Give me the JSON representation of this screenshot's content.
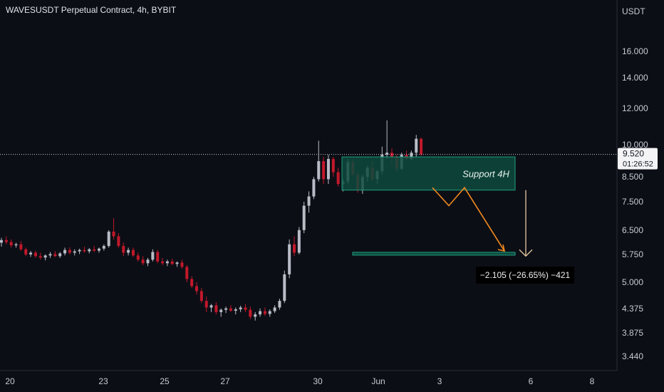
{
  "header": {
    "title": "WAVESUSDT Perpetual Contract, 4h, BYBIT"
  },
  "colors": {
    "background": "#0c0e15",
    "up": "#b8bcc6",
    "down": "#c2182b",
    "support_fill": "#0e4a3d",
    "support_border": "#1e9e82",
    "projection": "#f0891f",
    "arrow": "#e8c9a0",
    "current_price_bg": "#f4f4f6"
  },
  "chart_data": {
    "type": "candlestick",
    "currency": "USDT",
    "y_axis_ticks": [
      "16.000",
      "14.000",
      "12.000",
      "10.000",
      "8.500",
      "7.500",
      "6.500",
      "5.750",
      "5.000",
      "4.375",
      "3.875",
      "3.440"
    ],
    "x_axis_ticks": [
      "20",
      "23",
      "25",
      "27",
      "30",
      "Jun",
      "3",
      "6",
      "8"
    ],
    "current_price": "9.520",
    "countdown": "01:26:52",
    "support_zone": {
      "label": "Support 4H",
      "top": 9.4,
      "bottom": 7.95
    },
    "target_level": 5.77,
    "measure_label": "−2.105 (−26.65%) −421",
    "candles": [
      [
        6.1,
        6.25,
        5.98,
        6.18
      ],
      [
        6.18,
        6.3,
        6.05,
        6.12
      ],
      [
        6.12,
        6.2,
        5.95,
        6.02
      ],
      [
        6.02,
        6.1,
        5.95,
        6.05
      ],
      [
        6.05,
        6.15,
        5.85,
        5.9
      ],
      [
        5.9,
        5.95,
        5.7,
        5.75
      ],
      [
        5.75,
        5.85,
        5.68,
        5.8
      ],
      [
        5.8,
        5.86,
        5.66,
        5.7
      ],
      [
        5.7,
        5.8,
        5.6,
        5.66
      ],
      [
        5.66,
        5.75,
        5.58,
        5.72
      ],
      [
        5.72,
        5.82,
        5.65,
        5.76
      ],
      [
        5.76,
        5.85,
        5.68,
        5.7
      ],
      [
        5.7,
        5.82,
        5.65,
        5.78
      ],
      [
        5.78,
        5.95,
        5.72,
        5.88
      ],
      [
        5.88,
        5.96,
        5.75,
        5.8
      ],
      [
        5.8,
        5.9,
        5.72,
        5.84
      ],
      [
        5.84,
        5.92,
        5.76,
        5.88
      ],
      [
        5.88,
        5.98,
        5.8,
        5.84
      ],
      [
        5.84,
        5.94,
        5.78,
        5.9
      ],
      [
        5.9,
        6.0,
        5.82,
        5.86
      ],
      [
        5.86,
        5.95,
        5.8,
        5.92
      ],
      [
        5.92,
        6.05,
        5.86,
        6.0
      ],
      [
        6.0,
        6.5,
        5.95,
        6.45
      ],
      [
        6.45,
        6.9,
        6.2,
        6.3
      ],
      [
        6.3,
        6.4,
        5.95,
        6.0
      ],
      [
        6.0,
        6.1,
        5.7,
        5.8
      ],
      [
        5.8,
        5.95,
        5.72,
        5.88
      ],
      [
        5.88,
        5.95,
        5.68,
        5.72
      ],
      [
        5.72,
        5.8,
        5.55,
        5.6
      ],
      [
        5.6,
        5.7,
        5.45,
        5.5
      ],
      [
        5.5,
        5.65,
        5.42,
        5.6
      ],
      [
        5.6,
        5.9,
        5.55,
        5.82
      ],
      [
        5.82,
        5.88,
        5.5,
        5.55
      ],
      [
        5.55,
        5.65,
        5.45,
        5.5
      ],
      [
        5.5,
        5.6,
        5.42,
        5.55
      ],
      [
        5.55,
        5.62,
        5.45,
        5.48
      ],
      [
        5.48,
        5.55,
        5.4,
        5.52
      ],
      [
        5.52,
        5.6,
        5.35,
        5.4
      ],
      [
        5.4,
        5.45,
        5.0,
        5.08
      ],
      [
        5.08,
        5.15,
        4.85,
        4.9
      ],
      [
        4.9,
        5.0,
        4.7,
        4.78
      ],
      [
        4.78,
        4.85,
        4.5,
        4.55
      ],
      [
        4.55,
        4.65,
        4.3,
        4.4
      ],
      [
        4.4,
        4.48,
        4.3,
        4.45
      ],
      [
        4.45,
        4.52,
        4.25,
        4.3
      ],
      [
        4.3,
        4.38,
        4.2,
        4.35
      ],
      [
        4.35,
        4.42,
        4.28,
        4.38
      ],
      [
        4.38,
        4.45,
        4.3,
        4.33
      ],
      [
        4.33,
        4.4,
        4.25,
        4.36
      ],
      [
        4.36,
        4.44,
        4.3,
        4.4
      ],
      [
        4.4,
        4.48,
        4.3,
        4.35
      ],
      [
        4.35,
        4.42,
        4.15,
        4.2
      ],
      [
        4.2,
        4.3,
        4.12,
        4.25
      ],
      [
        4.25,
        4.38,
        4.2,
        4.32
      ],
      [
        4.32,
        4.4,
        4.22,
        4.26
      ],
      [
        4.26,
        4.36,
        4.2,
        4.32
      ],
      [
        4.32,
        4.45,
        4.28,
        4.4
      ],
      [
        4.4,
        4.6,
        4.35,
        4.55
      ],
      [
        4.55,
        5.3,
        4.5,
        5.2
      ],
      [
        5.2,
        6.2,
        5.1,
        6.05
      ],
      [
        6.05,
        6.3,
        5.7,
        5.8
      ],
      [
        5.8,
        6.6,
        5.75,
        6.5
      ],
      [
        6.5,
        7.5,
        6.4,
        7.35
      ],
      [
        7.35,
        7.9,
        7.1,
        7.7
      ],
      [
        7.7,
        8.5,
        7.6,
        8.4
      ],
      [
        8.4,
        10.2,
        8.3,
        9.2
      ],
      [
        9.2,
        9.4,
        8.2,
        8.4
      ],
      [
        8.4,
        9.5,
        8.2,
        9.3
      ],
      [
        9.3,
        9.4,
        8.5,
        8.7
      ],
      [
        8.7,
        8.9,
        8.1,
        8.2
      ],
      [
        8.2,
        8.4,
        7.9,
        8.3
      ],
      [
        8.3,
        9.3,
        8.2,
        9.15
      ],
      [
        9.15,
        9.3,
        8.5,
        8.6
      ],
      [
        8.6,
        8.7,
        7.85,
        7.95
      ],
      [
        7.95,
        8.6,
        7.8,
        8.5
      ],
      [
        8.5,
        9.0,
        8.3,
        8.9
      ],
      [
        8.9,
        9.2,
        8.3,
        8.4
      ],
      [
        8.4,
        8.8,
        8.2,
        8.75
      ],
      [
        8.75,
        9.9,
        8.6,
        9.5
      ],
      [
        9.5,
        11.3,
        9.3,
        9.6
      ],
      [
        9.6,
        9.8,
        9.0,
        9.4
      ],
      [
        9.4,
        9.5,
        8.7,
        8.85
      ],
      [
        8.85,
        9.6,
        8.8,
        9.5
      ],
      [
        9.5,
        9.7,
        9.2,
        9.3
      ],
      [
        9.3,
        9.7,
        9.25,
        9.6
      ],
      [
        9.6,
        10.5,
        9.4,
        10.3
      ],
      [
        10.3,
        10.35,
        9.45,
        9.52
      ]
    ]
  }
}
